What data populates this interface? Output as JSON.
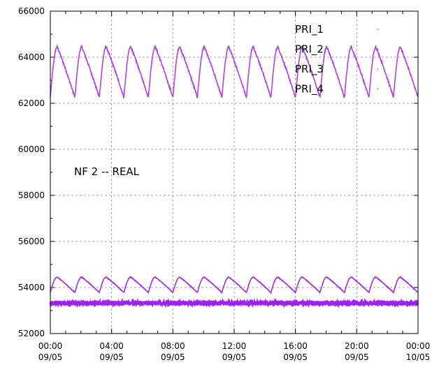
{
  "chart_data": {
    "type": "line",
    "title": "",
    "xlabel": "",
    "ylabel": "",
    "annotation": "NF 2 -- REAL",
    "ylim": [
      52000,
      66000
    ],
    "yticks": [
      52000,
      54000,
      56000,
      58000,
      60000,
      62000,
      64000,
      66000
    ],
    "xlim_hours": [
      0,
      24
    ],
    "xticks": [
      {
        "time": "00:00",
        "date": "09/05"
      },
      {
        "time": "04:00",
        "date": "09/05"
      },
      {
        "time": "08:00",
        "date": "09/05"
      },
      {
        "time": "12:00",
        "date": "09/05"
      },
      {
        "time": "16:00",
        "date": "09/05"
      },
      {
        "time": "20:00",
        "date": "09/05"
      },
      {
        "time": "00:00",
        "date": "10/05"
      }
    ],
    "grid": true,
    "legend_position": "top-right",
    "series": [
      {
        "name": "PRI_1",
        "color": "#b040e8",
        "pattern": "sawtooth",
        "period_hours": 1.6,
        "min": 62250,
        "max": 64450,
        "phase_hours": 0.0
      },
      {
        "name": "PRI_2",
        "color": "#a030e0",
        "pattern": "sawtooth",
        "period_hours": 1.6,
        "min": 53780,
        "max": 54450,
        "phase_hours": 0.0
      },
      {
        "name": "PRI_3",
        "color": "#a020f0",
        "pattern": "noise",
        "mean": 53340,
        "amplitude": 90
      },
      {
        "name": "PRI_4",
        "color": "#a020f0",
        "pattern": "noise",
        "mean": 53300,
        "amplitude": 80
      }
    ]
  }
}
